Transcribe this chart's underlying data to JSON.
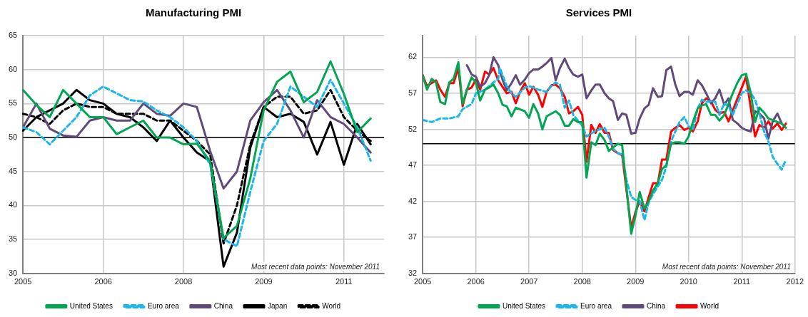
{
  "chart_data": [
    {
      "type": "line",
      "title": "Manufacturing PMI",
      "annotations": [
        "Most recent data points: November 2011"
      ],
      "categories": [
        "2005",
        null,
        null,
        null,
        null,
        null,
        "2006",
        null,
        null,
        null,
        null,
        null,
        "2008",
        null,
        null,
        null,
        null,
        null,
        "2009",
        null,
        null,
        null,
        null,
        null,
        "2011",
        null,
        null,
        null
      ],
      "series": [
        {
          "name": "United States",
          "color": "#00a651",
          "line_style": "solid",
          "values": [
            57,
            54.8,
            53,
            57,
            55,
            53,
            53,
            50.5,
            51.5,
            52.5,
            50,
            50,
            49,
            49.1,
            46.5,
            35.2,
            37,
            44,
            54,
            58.2,
            59.7,
            55.2,
            56.7,
            61.2,
            56.4,
            50.8,
            52.8,
            null
          ]
        },
        {
          "name": "Euro area",
          "color": "#1ab7ea",
          "line_style": "dashed",
          "values": [
            51.5,
            50.8,
            49,
            51,
            53,
            56.2,
            57.5,
            56.5,
            55.5,
            55.3,
            54,
            53,
            51.5,
            49.5,
            46,
            35,
            34,
            42,
            49.5,
            52,
            57.5,
            56,
            54.5,
            58.5,
            55,
            51.5,
            46.6,
            null
          ]
        },
        {
          "name": "China",
          "color": "#604a7b",
          "line_style": "solid",
          "values": [
            51.5,
            55,
            51.3,
            50.3,
            50.1,
            52.5,
            53,
            52.5,
            52.5,
            55,
            53.5,
            53.2,
            55,
            54.5,
            48,
            42.5,
            45,
            52.5,
            55.2,
            57,
            54,
            50,
            55.5,
            53,
            52,
            50,
            47.8,
            null
          ]
        },
        {
          "name": "Japan",
          "color": "#000000",
          "line_style": "solid",
          "values": [
            51,
            53,
            54,
            55,
            57,
            55.5,
            55,
            53.5,
            53,
            51.5,
            49.5,
            52.5,
            50,
            47.8,
            46.5,
            31,
            36,
            48.5,
            54.5,
            53,
            53.5,
            52.3,
            47.5,
            52.3,
            46,
            52,
            49,
            null
          ]
        },
        {
          "name": "World",
          "color": "#000000",
          "line_style": "dashed",
          "values": [
            53.5,
            53,
            52,
            54,
            55,
            54.5,
            54.5,
            53.5,
            53.5,
            53.5,
            52.5,
            52.5,
            51,
            49.5,
            47.5,
            34.4,
            40,
            49,
            54.5,
            56,
            56,
            53.5,
            54,
            57,
            53,
            51,
            49.5,
            null
          ]
        }
      ],
      "ylim": [
        30,
        65
      ],
      "yticks": [
        30,
        35,
        40,
        45,
        50,
        55,
        60,
        65
      ],
      "grid": true,
      "legend": "bottom",
      "marker": "none",
      "ref_lines": [
        {
          "axis": "y",
          "value": 50,
          "color": "#000000"
        }
      ]
    },
    {
      "type": "line",
      "title": "Services PMI",
      "annotations": [
        "Most recent data points: November 2011"
      ],
      "series": [
        {
          "name": "United States",
          "color": "#00a651",
          "line_style": "solid",
          "x": [
            2005,
            2005.08,
            2005.17,
            2005.25,
            2005.33,
            2005.42,
            2005.5,
            2005.58,
            2005.67,
            2005.75,
            2005.83,
            2005.92,
            2006,
            2006.08,
            2006.17,
            2006.25,
            2006.33,
            2006.42,
            2006.5,
            2006.58,
            2006.67,
            2006.75,
            2006.92,
            2007,
            2007.08,
            2007.17,
            2007.25,
            2007.33,
            2007.5,
            2007.58,
            2007.67,
            2007.75,
            2007.83,
            2007.92,
            2008,
            2008.08,
            2008.17,
            2008.25,
            2008.33,
            2008.42,
            2008.5,
            2008.58,
            2008.67,
            2008.75,
            2008.92,
            2009,
            2009.08,
            2009.17,
            2009.25,
            2009.33,
            2009.42,
            2009.5,
            2009.58,
            2009.67,
            2009.75,
            2009.83,
            2009.92,
            2010,
            2010.08,
            2010.17,
            2010.25,
            2010.33,
            2010.42,
            2010.5,
            2010.58,
            2010.67,
            2010.75,
            2010.83,
            2010.92,
            2011,
            2011.08,
            2011.17,
            2011.25,
            2011.33,
            2011.42,
            2011.5,
            2011.58,
            2011.67,
            2011.75,
            2011.83
          ],
          "values": [
            59.5,
            57.5,
            59,
            58.5,
            55.8,
            55.5,
            58.5,
            59,
            61.3,
            55.5,
            57.5,
            59.2,
            58.5,
            56,
            57.5,
            57.8,
            58.2,
            57,
            55.4,
            55.2,
            53.8,
            55,
            54.5,
            53.6,
            55.5,
            54.2,
            52,
            53.8,
            54.5,
            54,
            52.5,
            52.5,
            53.4,
            53,
            53,
            45.3,
            50.2,
            49.8,
            51.4,
            50.5,
            49,
            49.5,
            50,
            49.8,
            37.5,
            40,
            43.3,
            41,
            42,
            43.5,
            44.5,
            46.5,
            47,
            50,
            50.2,
            50.2,
            50,
            51,
            53,
            54.9,
            55.3,
            55.5,
            54,
            54,
            53.2,
            54,
            55.5,
            57,
            58.5,
            59.5,
            59.7,
            57,
            53,
            55,
            54.3,
            53.5,
            53.3,
            53,
            52.8,
            52.2
          ]
        },
        {
          "name": "Euro area",
          "color": "#1ab7ea",
          "line_style": "dashed",
          "x": [
            2005,
            2005.17,
            2005.33,
            2005.5,
            2005.67,
            2005.75,
            2005.92,
            2006,
            2006.17,
            2006.33,
            2006.42,
            2006.45,
            2006.58,
            2006.67,
            2006.75,
            2006.92,
            2007,
            2007.17,
            2007.33,
            2007.42,
            2007.5,
            2007.58,
            2007.67,
            2007.75,
            2007.83,
            2007.92,
            2008,
            2008.08,
            2008.25,
            2008.42,
            2008.5,
            2008.58,
            2008.67,
            2008.75,
            2008.83,
            2008.92,
            2009,
            2009.08,
            2009.17,
            2009.25,
            2009.33,
            2009.5,
            2009.58,
            2009.67,
            2009.75,
            2009.83,
            2009.92,
            2010,
            2010.08,
            2010.17,
            2010.25,
            2010.33,
            2010.42,
            2010.5,
            2010.58,
            2010.67,
            2010.75,
            2010.83,
            2010.92,
            2011,
            2011.08,
            2011.17,
            2011.25,
            2011.33,
            2011.42,
            2011.5,
            2011.58,
            2011.67,
            2011.75,
            2011.83
          ],
          "values": [
            53.3,
            53,
            53.5,
            53.5,
            53.8,
            54.8,
            55.5,
            57,
            57.5,
            58.5,
            59,
            60.5,
            58,
            57,
            56.5,
            57.8,
            58,
            57.5,
            57.2,
            58,
            58.5,
            58.2,
            55,
            56,
            54,
            53.2,
            52.5,
            51,
            51.8,
            52.2,
            51,
            49.3,
            48.7,
            48.5,
            45,
            42.6,
            42.2,
            42,
            39.4,
            41.9,
            43,
            45,
            46.8,
            50.3,
            51.7,
            53,
            53.7,
            52.4,
            51.9,
            54.9,
            56.1,
            55.8,
            55.9,
            55.8,
            54,
            55.6,
            55.2,
            54,
            55.6,
            57,
            57.4,
            57,
            56.1,
            54.2,
            51.7,
            50.3,
            48.2,
            47.2,
            46.4,
            47.8
          ]
        },
        {
          "name": "China",
          "color": "#604a7b",
          "line_style": "solid",
          "x": [
            2005.83,
            2005.92,
            2006,
            2006.08,
            2006.17,
            2006.25,
            2006.33,
            2006.42,
            2006.5,
            2006.58,
            2006.67,
            2006.75,
            2006.83,
            2006.92,
            2007,
            2007.08,
            2007.17,
            2007.25,
            2007.33,
            2007.42,
            2007.5,
            2007.58,
            2007.67,
            2007.75,
            2007.83,
            2007.92,
            2008,
            2008.08,
            2008.17,
            2008.25,
            2008.33,
            2008.42,
            2008.5,
            2008.58,
            2008.67,
            2008.75,
            2008.83,
            2008.92,
            2009,
            2009.08,
            2009.17,
            2009.25,
            2009.33,
            2009.42,
            2009.5,
            2009.58,
            2009.67,
            2009.75,
            2009.83,
            2009.92,
            2010,
            2010.08,
            2010.17,
            2010.25,
            2010.33,
            2010.42,
            2010.5,
            2010.58,
            2010.67,
            2010.75,
            2010.83,
            2010.92,
            2011,
            2011.08,
            2011.17,
            2011.25,
            2011.33,
            2011.42,
            2011.5,
            2011.58,
            2011.67,
            2011.75
          ],
          "values": [
            60.9,
            59.6,
            59.3,
            57.9,
            58.4,
            59.5,
            62,
            60.9,
            58.9,
            57.4,
            58.4,
            59.5,
            58.2,
            58.9,
            59.8,
            60.3,
            60.3,
            60.7,
            61.2,
            61.9,
            58.8,
            60.5,
            61.8,
            60.5,
            59.6,
            59.3,
            59.6,
            56.3,
            57.4,
            58.2,
            58.2,
            57,
            56.3,
            55.9,
            53.3,
            54.2,
            54,
            51.4,
            51.5,
            53.5,
            54.9,
            55.4,
            57.7,
            56.5,
            56.6,
            60.2,
            60.7,
            58.2,
            56.6,
            57.2,
            57.2,
            56.8,
            58.8,
            58.1,
            57,
            55.6,
            56.3,
            57.5,
            55.4,
            56.3,
            53.3,
            52.8,
            52.2,
            51.9,
            51.7,
            54.5,
            54.2,
            53.5,
            50.7,
            53.1,
            54.2,
            52.8
          ]
        },
        {
          "name": "World",
          "color": "#ff0000",
          "line_style": "solid",
          "x": [
            2005,
            2005.08,
            2005.25,
            2005.33,
            2005.42,
            2005.5,
            2005.58,
            2005.67,
            2005.75,
            2005.83,
            2005.92,
            2006,
            2006.08,
            2006.17,
            2006.25,
            2006.33,
            2006.42,
            2006.5,
            2006.58,
            2006.67,
            2006.75,
            2006.83,
            2006.92,
            2007,
            2007.08,
            2007.17,
            2007.25,
            2007.33,
            2007.42,
            2007.5,
            2007.58,
            2007.67,
            2007.75,
            2007.83,
            2007.92,
            2008,
            2008.08,
            2008.17,
            2008.25,
            2008.33,
            2008.42,
            2008.5,
            2008.58,
            2008.67,
            2008.75,
            2008.92,
            2009,
            2009.08,
            2009.17,
            2009.25,
            2009.33,
            2009.42,
            2009.5,
            2009.58,
            2009.67,
            2009.75,
            2009.83,
            2009.92,
            2010,
            2010.08,
            2010.17,
            2010.25,
            2010.33,
            2010.42,
            2010.5,
            2010.58,
            2010.67,
            2010.75,
            2011.08,
            2011.25,
            2011.33,
            2011.42,
            2011.5,
            2011.58,
            2011.67,
            2011.75,
            2011.83
          ],
          "values": [
            59.5,
            58,
            58.8,
            57.5,
            56.5,
            58.4,
            58.4,
            60.5,
            55.2,
            57.5,
            57.8,
            58.9,
            57.5,
            60,
            59.6,
            60.5,
            58.8,
            57.9,
            57,
            57.2,
            55.6,
            57.2,
            58.4,
            56.8,
            57.9,
            56.8,
            55.1,
            57.2,
            58.1,
            58.2,
            57.7,
            56.5,
            54.2,
            54.5,
            55.1,
            54,
            47.5,
            52.6,
            51.5,
            52.7,
            51.5,
            51.5,
            49.1,
            48.7,
            48.4,
            38.3,
            40.5,
            42,
            40.6,
            42.6,
            44.5,
            44.5,
            47.8,
            47.8,
            51.7,
            52.2,
            52.6,
            51.9,
            52.2,
            51.7,
            53.1,
            55.6,
            56.3,
            55.9,
            54.7,
            54.2,
            54.4,
            53.1,
            59.3,
            51,
            52.6,
            52.2,
            53.1,
            52.1,
            52.8,
            51.9,
            52.8
          ]
        }
      ],
      "xlim": [
        2005,
        2012
      ],
      "xticks": [
        2005,
        2006,
        2007,
        2008,
        2009,
        2010,
        2011,
        2012
      ],
      "ylim": [
        32,
        65
      ],
      "yticks": [
        32,
        37,
        42,
        47,
        52,
        57,
        62
      ],
      "grid": true,
      "legend": "bottom",
      "marker": "none",
      "ref_lines": [
        {
          "axis": "y",
          "value": 50,
          "color": "#000000"
        }
      ]
    }
  ]
}
